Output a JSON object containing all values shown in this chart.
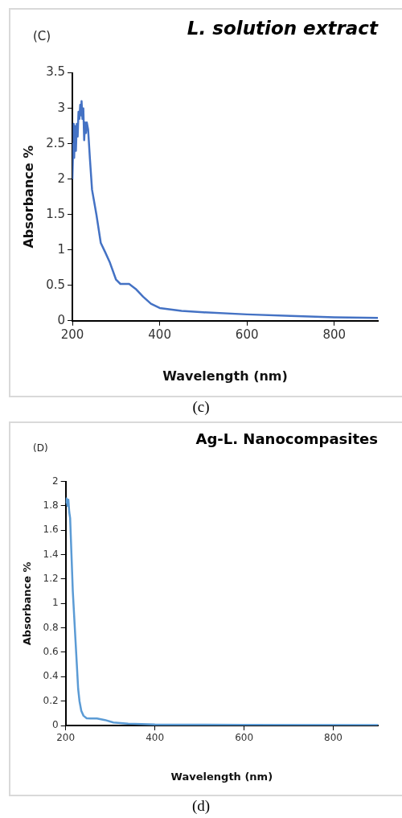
{
  "chart_data": [
    {
      "type": "line",
      "title": "L. solution extract",
      "xlabel": "Wavelength (nm)",
      "ylabel": "Absorbance %",
      "annotations": [
        "(C)",
        "(c)"
      ],
      "xlim": [
        200,
        900
      ],
      "xticks": [
        200,
        400,
        600,
        800
      ],
      "ylim": [
        0,
        3.5
      ],
      "yticks": [
        0,
        0.5,
        1,
        1.5,
        2,
        2.5,
        3,
        3.5
      ],
      "grid": false,
      "legend": false,
      "series": [
        {
          "color": "#4472c4",
          "x": [
            200,
            202,
            203,
            204,
            206,
            208,
            210,
            212,
            214,
            216,
            218,
            220,
            221,
            223,
            225,
            227,
            229,
            231,
            233,
            236,
            240,
            245,
            255,
            265,
            275,
            286,
            300,
            310,
            330,
            345,
            362,
            380,
            400,
            450,
            500,
            600,
            700,
            800,
            900
          ],
          "values": [
            2.0,
            2.5,
            2.78,
            2.3,
            2.75,
            2.4,
            2.78,
            2.6,
            2.95,
            2.85,
            3.05,
            2.9,
            3.1,
            2.85,
            3.0,
            2.55,
            2.8,
            2.65,
            2.8,
            2.7,
            2.3,
            1.85,
            1.5,
            1.1,
            0.97,
            0.82,
            0.58,
            0.52,
            0.52,
            0.45,
            0.34,
            0.24,
            0.18,
            0.14,
            0.12,
            0.09,
            0.07,
            0.05,
            0.04
          ]
        }
      ]
    },
    {
      "type": "line",
      "title": "Ag-L. Nanocompasites",
      "xlabel": "Wavelength (nm)",
      "ylabel": "Absorbance %",
      "annotations": [
        "(D)",
        "(d)"
      ],
      "xlim": [
        200,
        900
      ],
      "xticks": [
        200,
        400,
        600,
        800
      ],
      "ylim": [
        0,
        2
      ],
      "yticks": [
        0,
        0.2,
        0.4,
        0.6,
        0.8,
        1,
        1.2,
        1.4,
        1.6,
        1.8,
        2
      ],
      "grid": false,
      "legend": false,
      "series": [
        {
          "color": "#5b9bd5",
          "x": [
            200,
            202,
            204,
            206,
            208,
            210,
            213,
            216,
            219,
            222,
            225,
            228,
            231,
            235,
            240,
            247,
            255,
            270,
            288,
            307,
            340,
            400,
            600,
            900
          ],
          "values": [
            1.82,
            1.86,
            1.8,
            1.85,
            1.75,
            1.7,
            1.4,
            1.1,
            0.9,
            0.7,
            0.5,
            0.3,
            0.2,
            0.12,
            0.08,
            0.06,
            0.058,
            0.058,
            0.045,
            0.025,
            0.015,
            0.008,
            0.005,
            0.004
          ]
        }
      ]
    }
  ]
}
